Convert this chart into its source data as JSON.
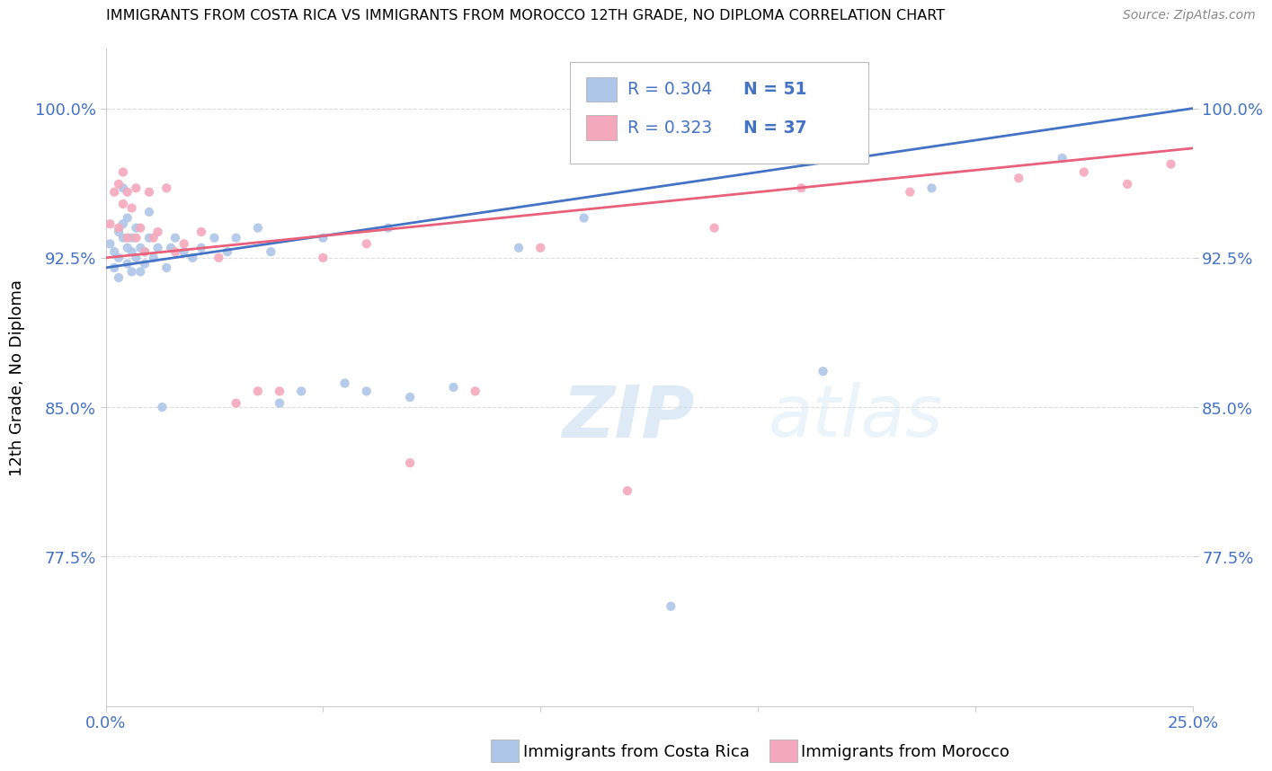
{
  "title": "IMMIGRANTS FROM COSTA RICA VS IMMIGRANTS FROM MOROCCO 12TH GRADE, NO DIPLOMA CORRELATION CHART",
  "source_text": "Source: ZipAtlas.com",
  "ylabel": "12th Grade, No Diploma",
  "xmin": 0.0,
  "xmax": 0.25,
  "ymin": 0.7,
  "ymax": 1.03,
  "yticks": [
    0.775,
    0.85,
    0.925,
    1.0
  ],
  "ytick_labels": [
    "77.5%",
    "85.0%",
    "92.5%",
    "100.0%"
  ],
  "xticks": [
    0.0,
    0.05,
    0.1,
    0.15,
    0.2,
    0.25
  ],
  "xtick_labels": [
    "0.0%",
    "",
    "",
    "",
    "",
    "25.0%"
  ],
  "costa_rica_R": 0.304,
  "costa_rica_N": 51,
  "morocco_R": 0.323,
  "morocco_N": 37,
  "costa_rica_color": "#aec6e8",
  "morocco_color": "#f4a8bc",
  "costa_rica_line_color": "#4472c4",
  "morocco_line_color": "#e8607a",
  "scatter_alpha": 0.9,
  "scatter_size": 55,
  "costa_rica_x": [
    0.001,
    0.002,
    0.002,
    0.003,
    0.003,
    0.003,
    0.004,
    0.004,
    0.004,
    0.005,
    0.005,
    0.005,
    0.006,
    0.006,
    0.006,
    0.007,
    0.007,
    0.008,
    0.008,
    0.009,
    0.009,
    0.01,
    0.01,
    0.011,
    0.012,
    0.013,
    0.014,
    0.015,
    0.016,
    0.018,
    0.02,
    0.022,
    0.025,
    0.028,
    0.03,
    0.035,
    0.038,
    0.04,
    0.045,
    0.05,
    0.055,
    0.06,
    0.065,
    0.07,
    0.08,
    0.095,
    0.11,
    0.13,
    0.165,
    0.19,
    0.22
  ],
  "costa_rica_y": [
    0.932,
    0.928,
    0.92,
    0.938,
    0.925,
    0.915,
    0.935,
    0.942,
    0.96,
    0.93,
    0.945,
    0.922,
    0.928,
    0.918,
    0.935,
    0.925,
    0.94,
    0.93,
    0.918,
    0.928,
    0.922,
    0.935,
    0.948,
    0.925,
    0.93,
    0.85,
    0.92,
    0.93,
    0.935,
    0.928,
    0.925,
    0.93,
    0.935,
    0.928,
    0.935,
    0.94,
    0.928,
    0.852,
    0.858,
    0.935,
    0.862,
    0.858,
    0.94,
    0.855,
    0.86,
    0.93,
    0.945,
    0.75,
    0.868,
    0.96,
    0.975
  ],
  "morocco_x": [
    0.001,
    0.002,
    0.003,
    0.003,
    0.004,
    0.004,
    0.005,
    0.005,
    0.006,
    0.007,
    0.007,
    0.008,
    0.009,
    0.01,
    0.011,
    0.012,
    0.014,
    0.016,
    0.018,
    0.022,
    0.026,
    0.03,
    0.035,
    0.04,
    0.05,
    0.06,
    0.07,
    0.085,
    0.1,
    0.12,
    0.14,
    0.16,
    0.185,
    0.21,
    0.225,
    0.235,
    0.245
  ],
  "morocco_y": [
    0.942,
    0.958,
    0.962,
    0.94,
    0.968,
    0.952,
    0.935,
    0.958,
    0.95,
    0.96,
    0.935,
    0.94,
    0.928,
    0.958,
    0.935,
    0.938,
    0.96,
    0.928,
    0.932,
    0.938,
    0.925,
    0.852,
    0.858,
    0.858,
    0.925,
    0.932,
    0.822,
    0.858,
    0.93,
    0.808,
    0.94,
    0.96,
    0.958,
    0.965,
    0.968,
    0.962,
    0.972
  ],
  "watermark_text": "ZIPatlas",
  "background_color": "#ffffff",
  "grid_color": "#dddddd",
  "tick_color": "#4472c4",
  "legend_R1": "R = 0.304",
  "legend_N1": "N = 51",
  "legend_R2": "R = 0.323",
  "legend_N2": "N = 37",
  "legend_label1": "Immigrants from Costa Rica",
  "legend_label2": "Immigrants from Morocco"
}
